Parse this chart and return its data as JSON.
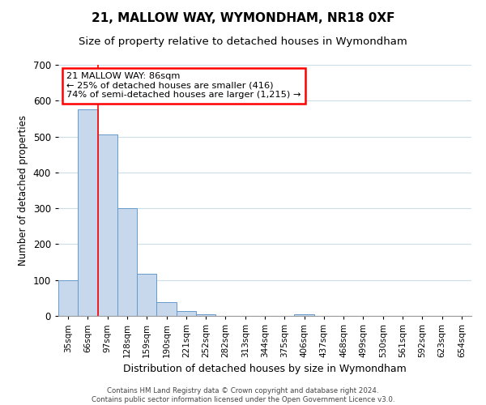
{
  "title": "21, MALLOW WAY, WYMONDHAM, NR18 0XF",
  "subtitle": "Size of property relative to detached houses in Wymondham",
  "xlabel": "Distribution of detached houses by size in Wymondham",
  "ylabel": "Number of detached properties",
  "categories": [
    "35sqm",
    "66sqm",
    "97sqm",
    "128sqm",
    "159sqm",
    "190sqm",
    "221sqm",
    "252sqm",
    "282sqm",
    "313sqm",
    "344sqm",
    "375sqm",
    "406sqm",
    "437sqm",
    "468sqm",
    "499sqm",
    "530sqm",
    "561sqm",
    "592sqm",
    "623sqm",
    "654sqm"
  ],
  "bar_values": [
    100,
    575,
    505,
    300,
    118,
    38,
    14,
    5,
    0,
    0,
    0,
    0,
    5,
    0,
    0,
    0,
    0,
    0,
    0,
    0,
    0
  ],
  "bar_color": "#c8d8ec",
  "bar_edge_color": "#6699cc",
  "ylim": [
    0,
    700
  ],
  "yticks": [
    0,
    100,
    200,
    300,
    400,
    500,
    600,
    700
  ],
  "red_line_x": 1.5,
  "annotation_text_line1": "21 MALLOW WAY: 86sqm",
  "annotation_text_line2": "← 25% of detached houses are smaller (416)",
  "annotation_text_line3": "74% of semi-detached houses are larger (1,215) →",
  "footer_line1": "Contains HM Land Registry data © Crown copyright and database right 2024.",
  "footer_line2": "Contains public sector information licensed under the Open Government Licence v3.0.",
  "title_fontsize": 11,
  "subtitle_fontsize": 9.5,
  "background_color": "#ffffff",
  "grid_color": "#ccdde8"
}
